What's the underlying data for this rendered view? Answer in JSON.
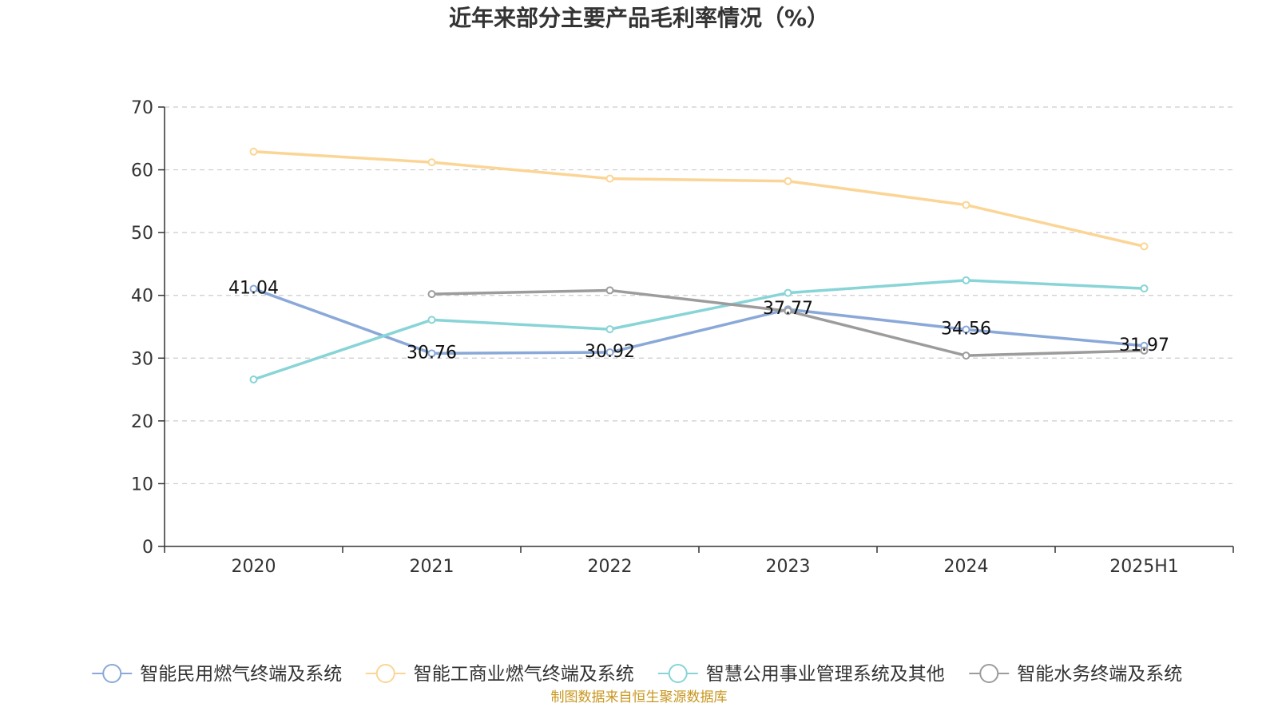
{
  "chart_data": {
    "type": "line",
    "title": "近年来部分主要产品毛利率情况（%）",
    "xlabel": "",
    "ylabel": "",
    "categories": [
      "2020",
      "2021",
      "2022",
      "2023",
      "2024",
      "2025H1"
    ],
    "ylim": [
      0,
      70
    ],
    "yticks": [
      0,
      10,
      20,
      30,
      40,
      50,
      60,
      70
    ],
    "grid": "horizontal-dashed",
    "legend_position": "bottom",
    "series": [
      {
        "name": "智能民用燃气终端及系统",
        "color": "#8aa8d8",
        "values": [
          41.04,
          30.76,
          30.92,
          37.77,
          34.56,
          31.97
        ],
        "data_labels": [
          "41.04",
          "30.76",
          "30.92",
          "37.77",
          "34.56",
          "31.97"
        ]
      },
      {
        "name": "智能工商业燃气终端及系统",
        "color": "#fbd595",
        "values": [
          62.9,
          61.2,
          58.6,
          58.2,
          54.4,
          47.8
        ],
        "data_labels": []
      },
      {
        "name": "智慧公用事业管理系统及其他",
        "color": "#88d4d6",
        "values": [
          26.6,
          36.1,
          34.6,
          40.4,
          42.4,
          41.1
        ],
        "data_labels": []
      },
      {
        "name": "智能水务终端及系统",
        "color": "#9c9c9c",
        "values": [
          null,
          40.2,
          40.8,
          37.5,
          30.4,
          31.2
        ],
        "data_labels": []
      }
    ]
  },
  "footer": {
    "source": "制图数据来自恒生聚源数据库",
    "source_color": "#c8961e"
  }
}
